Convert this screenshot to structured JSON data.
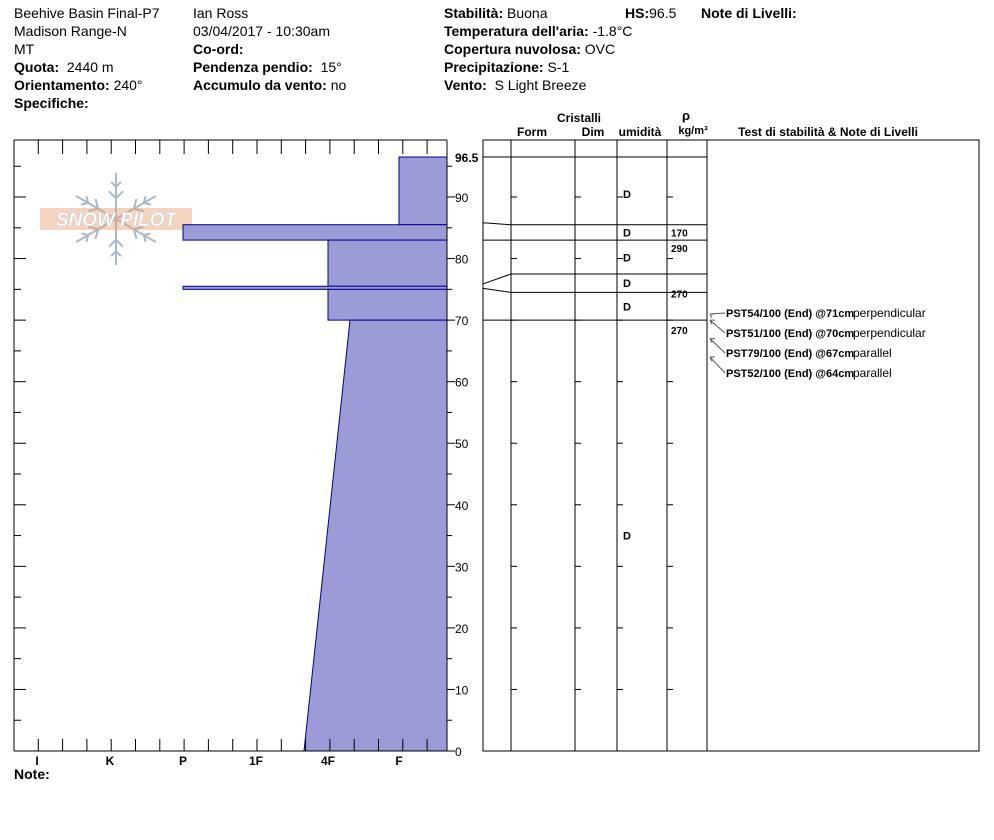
{
  "header": {
    "location": "Beehive Basin Final-P7",
    "range": "Madison Range-N",
    "state": "MT",
    "elevation_label": "Quota:",
    "elevation_value": "2440 m",
    "aspect_label": "Orientamento:",
    "aspect_value": "240°",
    "specifics_label": "Specifiche:",
    "observer": "Ian Ross",
    "datetime": "03/04/2017 - 10:30am",
    "coords_label": "Co-ord:",
    "slope_label": "Pendenza pendio:",
    "slope_value": "15°",
    "wind_loading_label": "Accumulo da vento:",
    "wind_loading_value": "no",
    "stability_label": "Stabilità:",
    "stability_value": "Buona",
    "hs_label": "HS:",
    "hs_value": "96.5",
    "layer_notes_label": "Note di Livelli:",
    "air_temp_label": "Temperatura dell'aria:",
    "air_temp_value": "-1.8°C",
    "cloud_label": "Copertura nuvolosa:",
    "cloud_value": "OVC",
    "precip_label": "Precipitazione:",
    "precip_value": "S-1",
    "wind_label": "Vento:",
    "wind_value": "S Light Breeze",
    "note_label": "Note:"
  },
  "logo_text": "SNOW PILOT",
  "colors": {
    "hardness_fill": "#9b9bd7",
    "hardness_stroke": "#00008b",
    "logo_blue": "#a9b9c6",
    "logo_orange": "#e8a070"
  },
  "chart_data": {
    "type": "snow_profile",
    "y_axis": {
      "min": 0,
      "max": 96.5,
      "ticks": [
        0,
        10,
        20,
        30,
        40,
        50,
        60,
        70,
        80,
        90,
        96.5
      ]
    },
    "hardness_scale": [
      "I",
      "K",
      "P",
      "1F",
      "4F",
      "F"
    ],
    "hardness_profile": [
      {
        "top": 96.5,
        "bottom": 85.5,
        "hardness": "F"
      },
      {
        "top": 85.5,
        "bottom": 83.0,
        "hardness": "P"
      },
      {
        "top": 83.0,
        "bottom": 75.5,
        "hardness": "4F"
      },
      {
        "top": 75.5,
        "bottom": 75.0,
        "hardness": "P"
      },
      {
        "top": 75.0,
        "bottom": 70.0,
        "hardness": "4F"
      },
      {
        "top": 70.0,
        "bottom": 0.0,
        "hardness_top": "4F",
        "hardness_bottom": "1F+"
      }
    ],
    "column_headers": {
      "crystals": "Cristalli",
      "form": "Form",
      "size": "Dim",
      "moisture": "umidità",
      "rho": "ρ",
      "density_unit": "kg/m³",
      "tests": "Test di stabilità & Note di Livelli"
    },
    "layer_boundaries": [
      96.5,
      85.5,
      83.0,
      77.5,
      74.5,
      70.0,
      0
    ],
    "moisture": [
      {
        "height": 90.5,
        "label": "D"
      },
      {
        "height": 84.2,
        "label": "D"
      },
      {
        "height": 80.2,
        "label": "D"
      },
      {
        "height": 76.0,
        "label": "D"
      },
      {
        "height": 72.2,
        "label": "D"
      },
      {
        "height": 35.0,
        "label": "D"
      }
    ],
    "density": [
      {
        "height": 84.2,
        "value": "170"
      },
      {
        "height": 81.7,
        "value": "290"
      },
      {
        "height": 74.3,
        "value": "270"
      },
      {
        "height": 68.4,
        "value": "270"
      }
    ],
    "tests": [
      {
        "height": 71,
        "text": "PST54/100 (End) @71cm",
        "orientation": "perpendicular"
      },
      {
        "height": 70,
        "text": "PST51/100 (End) @70cm",
        "orientation": "perpendicular"
      },
      {
        "height": 67,
        "text": "PST79/100 (End) @67cm",
        "orientation": "parallel"
      },
      {
        "height": 64,
        "text": "PST52/100 (End) @64cm",
        "orientation": "parallel"
      }
    ]
  }
}
